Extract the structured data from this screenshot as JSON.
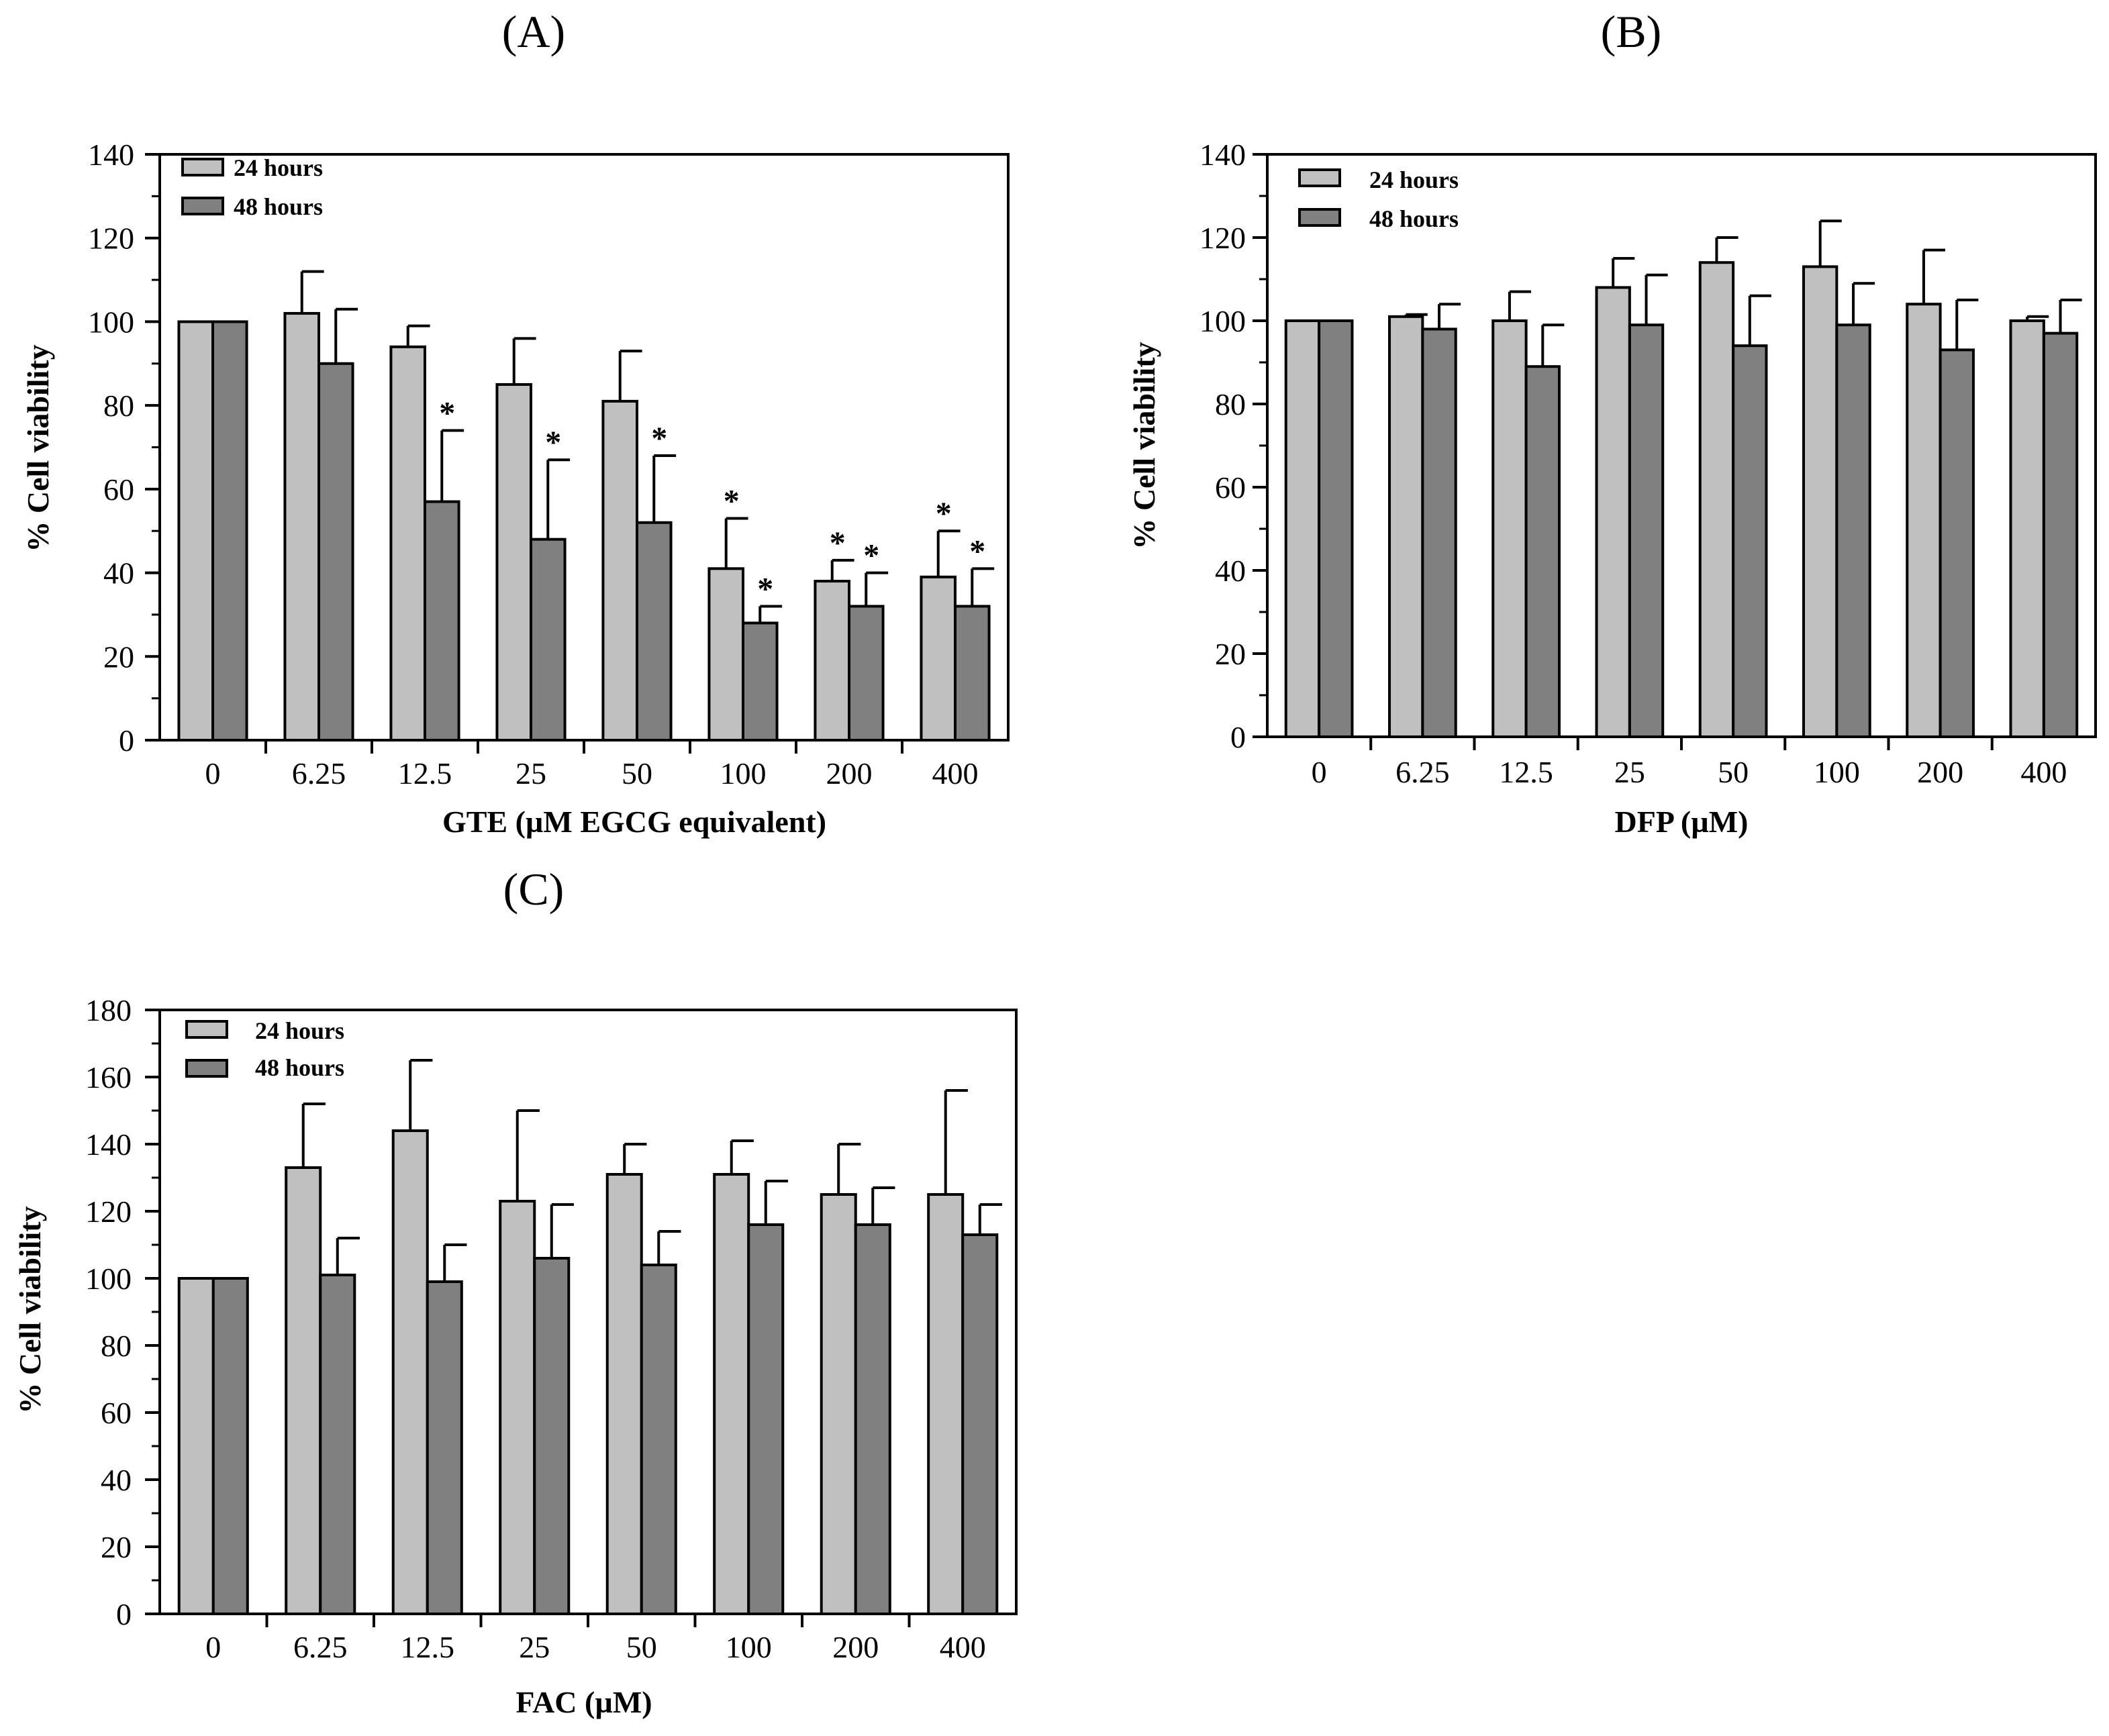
{
  "chart_data": [
    {
      "panel": "(A)",
      "type": "bar",
      "xlabel": "GTE (µM EGCG equivalent)",
      "ylabel": "% Cell viability",
      "ylim": [
        0,
        140
      ],
      "yticks": [
        0,
        20,
        40,
        60,
        80,
        100,
        120,
        140
      ],
      "categories": [
        "0",
        "6.25",
        "12.5",
        "25",
        "50",
        "100",
        "200",
        "400"
      ],
      "legend_position": "top-left",
      "series": [
        {
          "name": "24 hours",
          "color": "#c0c0c0",
          "values": [
            100,
            102,
            94,
            85,
            81,
            41,
            38,
            39
          ],
          "errors": [
            0,
            10,
            5,
            11,
            12,
            12,
            5,
            11
          ],
          "significant": [
            false,
            false,
            false,
            false,
            false,
            true,
            true,
            true
          ]
        },
        {
          "name": "48 hours",
          "color": "#808080",
          "values": [
            100,
            90,
            57,
            48,
            52,
            28,
            32,
            32
          ],
          "errors": [
            0,
            13,
            17,
            19,
            16,
            4,
            8,
            9
          ],
          "significant": [
            false,
            false,
            true,
            true,
            true,
            true,
            true,
            true
          ]
        }
      ],
      "significance_marker": "*"
    },
    {
      "panel": "(B)",
      "type": "bar",
      "xlabel": "DFP (µM)",
      "ylabel": "% Cell viability",
      "ylim": [
        0,
        140
      ],
      "yticks": [
        0,
        20,
        40,
        60,
        80,
        100,
        120,
        140
      ],
      "categories": [
        "0",
        "6.25",
        "12.5",
        "25",
        "50",
        "100",
        "200",
        "400"
      ],
      "legend_position": "top-left",
      "series": [
        {
          "name": "24 hours",
          "color": "#c0c0c0",
          "values": [
            100,
            101,
            100,
            108,
            114,
            113,
            104,
            100
          ],
          "errors": [
            0,
            0.5,
            7,
            7,
            6,
            11,
            13,
            1
          ],
          "significant": [
            false,
            false,
            false,
            false,
            false,
            false,
            false,
            false
          ]
        },
        {
          "name": "48 hours",
          "color": "#808080",
          "values": [
            100,
            98,
            89,
            99,
            94,
            99,
            93,
            97
          ],
          "errors": [
            0,
            6,
            10,
            12,
            12,
            10,
            12,
            8
          ],
          "significant": [
            false,
            false,
            false,
            false,
            false,
            false,
            false,
            false
          ]
        }
      ],
      "significance_marker": "*"
    },
    {
      "panel": "(C)",
      "type": "bar",
      "xlabel": "FAC (µM)",
      "ylabel": "% Cell viability",
      "ylim": [
        0,
        180
      ],
      "yticks": [
        0,
        20,
        40,
        60,
        80,
        100,
        120,
        140,
        160,
        180
      ],
      "categories": [
        "0",
        "6.25",
        "12.5",
        "25",
        "50",
        "100",
        "200",
        "400"
      ],
      "legend_position": "top-left",
      "series": [
        {
          "name": "24 hours",
          "color": "#c0c0c0",
          "values": [
            100,
            133,
            144,
            123,
            131,
            131,
            125,
            125
          ],
          "errors": [
            0,
            19,
            21,
            27,
            9,
            10,
            15,
            31
          ],
          "significant": [
            false,
            false,
            false,
            false,
            false,
            false,
            false,
            false
          ]
        },
        {
          "name": "48 hours",
          "color": "#808080",
          "values": [
            100,
            101,
            99,
            106,
            104,
            116,
            116,
            113
          ],
          "errors": [
            0,
            11,
            11,
            16,
            10,
            13,
            11,
            9
          ],
          "significant": [
            false,
            false,
            false,
            false,
            false,
            false,
            false,
            false
          ]
        }
      ],
      "significance_marker": "*"
    }
  ]
}
